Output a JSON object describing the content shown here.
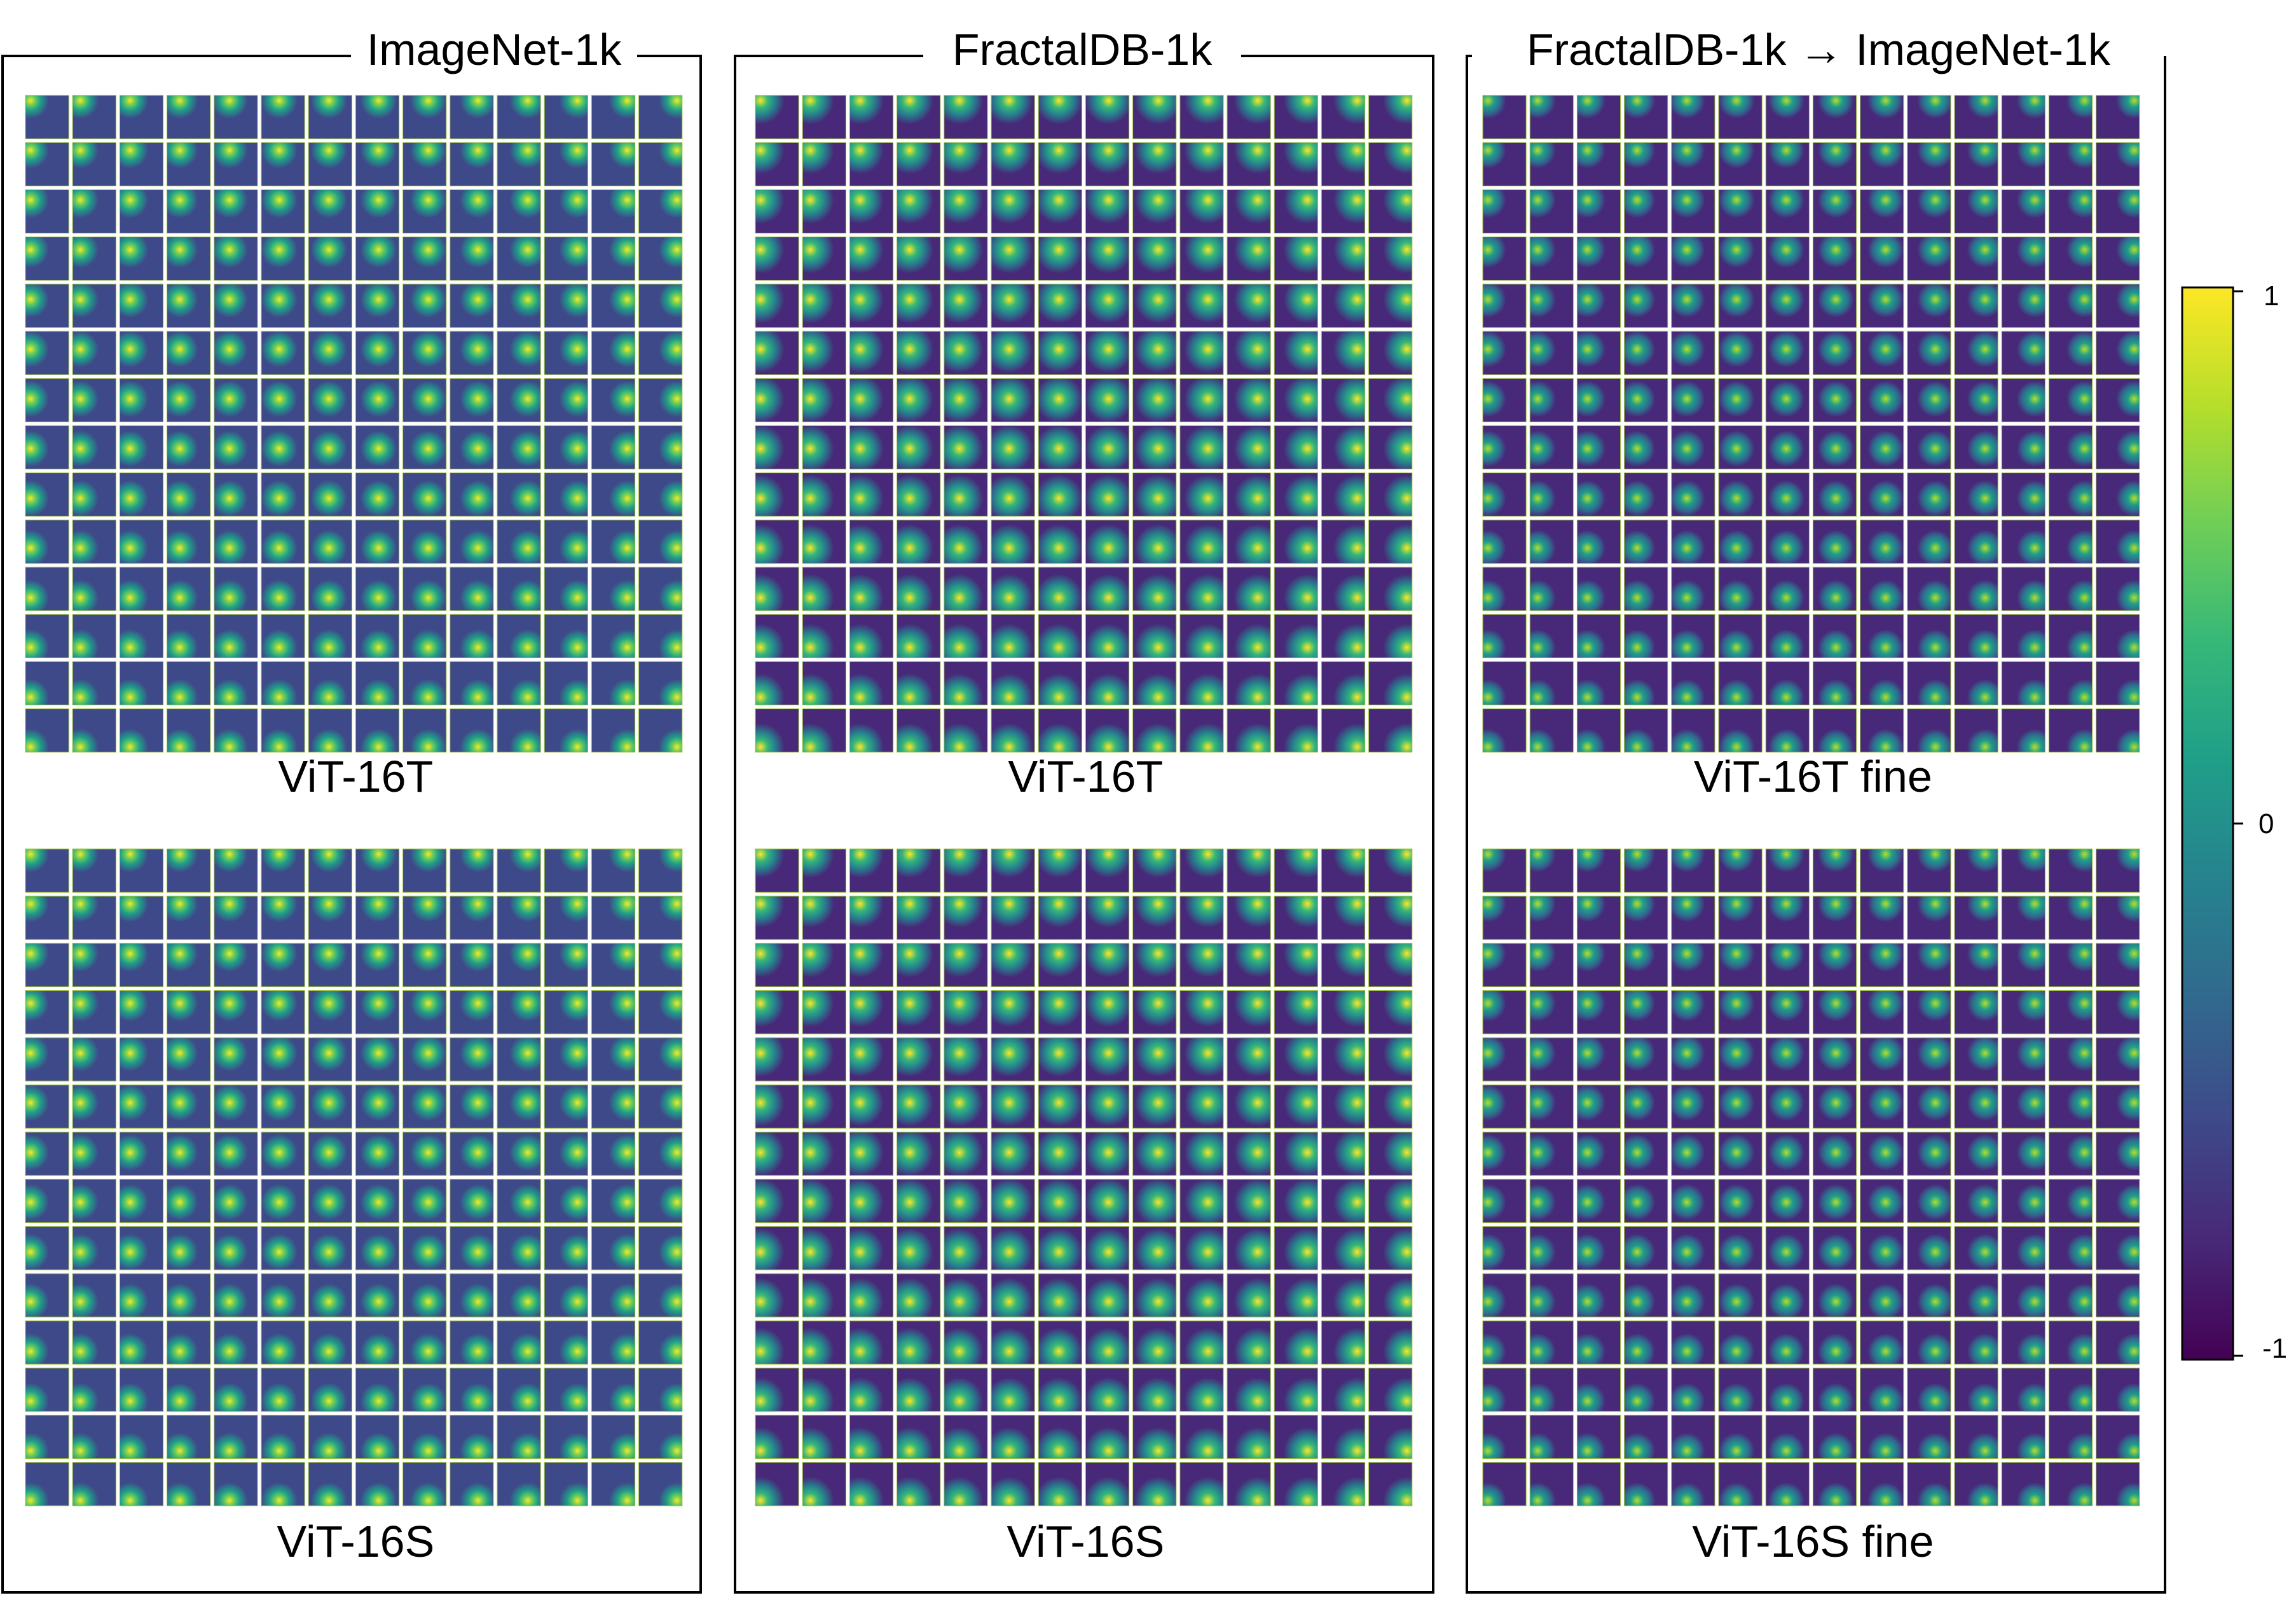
{
  "panels": [
    {
      "title": "ImageNet-1k",
      "grids": [
        {
          "label": "ViT-16T",
          "model": "tiny",
          "pattern": "imagenet"
        },
        {
          "label": "ViT-16S",
          "model": "small",
          "pattern": "imagenet"
        }
      ]
    },
    {
      "title": "FractalDB-1k",
      "grids": [
        {
          "label": "ViT-16T",
          "model": "tiny",
          "pattern": "fractal"
        },
        {
          "label": "ViT-16S",
          "model": "small",
          "pattern": "fractal"
        }
      ]
    },
    {
      "title": "FractalDB-1k → ImageNet-1k",
      "grids": [
        {
          "label": "ViT-16T fine",
          "model": "tiny",
          "pattern": "finetune"
        },
        {
          "label": "ViT-16S fine",
          "model": "small",
          "pattern": "finetune"
        }
      ]
    }
  ],
  "grid_rows": 14,
  "grid_cols": 14,
  "colorbar": {
    "colormap": "viridis",
    "max_label": "1",
    "mid_label": "0",
    "min_label": "-1",
    "range": [
      -1,
      1
    ],
    "stops": [
      "#440154",
      "#482878",
      "#3e4989",
      "#31688e",
      "#26828e",
      "#1f9e89",
      "#35b779",
      "#6ece58",
      "#b5de2b",
      "#fde725"
    ]
  }
}
